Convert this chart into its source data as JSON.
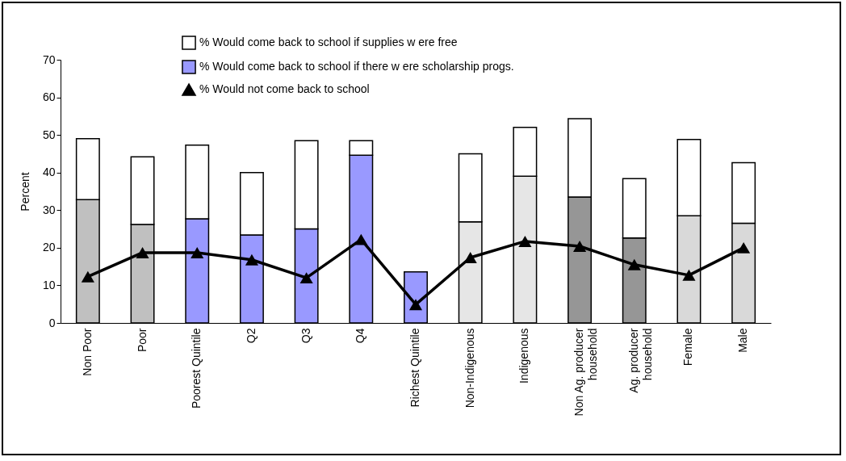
{
  "chart_data": {
    "type": "bar",
    "stacked": true,
    "ylabel": "Percent",
    "categories": [
      "Non Poor",
      "Poor",
      "Poorest Quintile",
      "Q2",
      "Q3",
      "Q4",
      "Richest Quintile",
      "Non-Indigenous",
      "Indigenous",
      "Non Ag. producer household",
      "Ag. producer household",
      "Female",
      "Male"
    ],
    "series": [
      {
        "name": "% Would come back to school if there w ere scholarship progs.",
        "color": "#9999ff",
        "colors": [
          "#c0c0c0",
          "#c0c0c0",
          "#9999ff",
          "#9999ff",
          "#9999ff",
          "#9999ff",
          "#9999ff",
          "#e6e6e6",
          "#e6e6e6",
          "#969696",
          "#969696",
          "#d9d9d9",
          "#d9d9d9"
        ],
        "values": [
          32.8,
          26.2,
          27.7,
          23.4,
          25,
          44.6,
          13.6,
          26.9,
          39,
          33.5,
          22.6,
          28.5,
          26.5
        ]
      },
      {
        "name": "% Would come back to school if supplies w ere free",
        "color": "#ffffff",
        "values": [
          16.2,
          18,
          19.6,
          16.6,
          23.5,
          3.9,
          null,
          18.1,
          13,
          20.8,
          15.8,
          20.3,
          16.1
        ]
      },
      {
        "name": "% Would not come back to school",
        "type": "line",
        "color": "#000000",
        "marker": "triangle",
        "values": [
          12.3,
          18.7,
          18.7,
          16.8,
          12,
          22.2,
          4.9,
          17.4,
          21.7,
          20.4,
          15.5,
          12.7,
          20
        ]
      }
    ],
    "ylim": [
      0,
      70
    ],
    "yticks": [
      0,
      10,
      20,
      30,
      40,
      50,
      60,
      70
    ],
    "grid": false,
    "legend": "top left"
  }
}
